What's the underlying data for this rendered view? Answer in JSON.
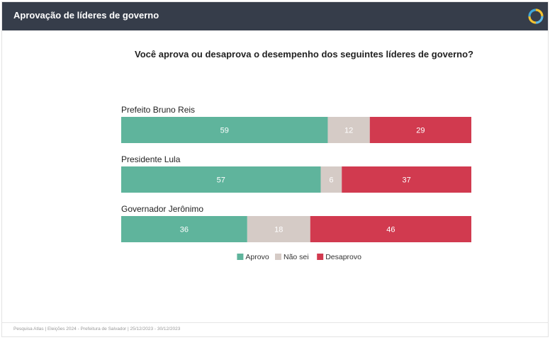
{
  "header": {
    "title": "Aprovação de líderes de governo"
  },
  "logo": {
    "icon": "atlas-logo-icon",
    "colors": [
      "#5cb8e6",
      "#f2c230",
      "#3fa6d9"
    ]
  },
  "chart_data": {
    "type": "bar",
    "orientation": "horizontal",
    "stacked": true,
    "title": "Você aprova ou desaprova o desempenho dos seguintes líderes de governo?",
    "categories": [
      "Prefeito Bruno Reis",
      "Presidente Lula",
      "Governador Jerônimo"
    ],
    "series": [
      {
        "name": "Aprovo",
        "color": "#5fb49c",
        "values": [
          59,
          57,
          36
        ]
      },
      {
        "name": "Não sei",
        "color": "#d5cbc6",
        "values": [
          12,
          6,
          18
        ]
      },
      {
        "name": "Desaprovo",
        "color": "#d13a4f",
        "values": [
          29,
          37,
          46
        ]
      }
    ],
    "xlim": [
      0,
      100
    ],
    "legend": "bottom"
  },
  "footer": {
    "text": "Pesquisa Atlas | Eleições 2024 - Prefeitura de Salvador | 25/12/2023 - 30/12/2023"
  }
}
